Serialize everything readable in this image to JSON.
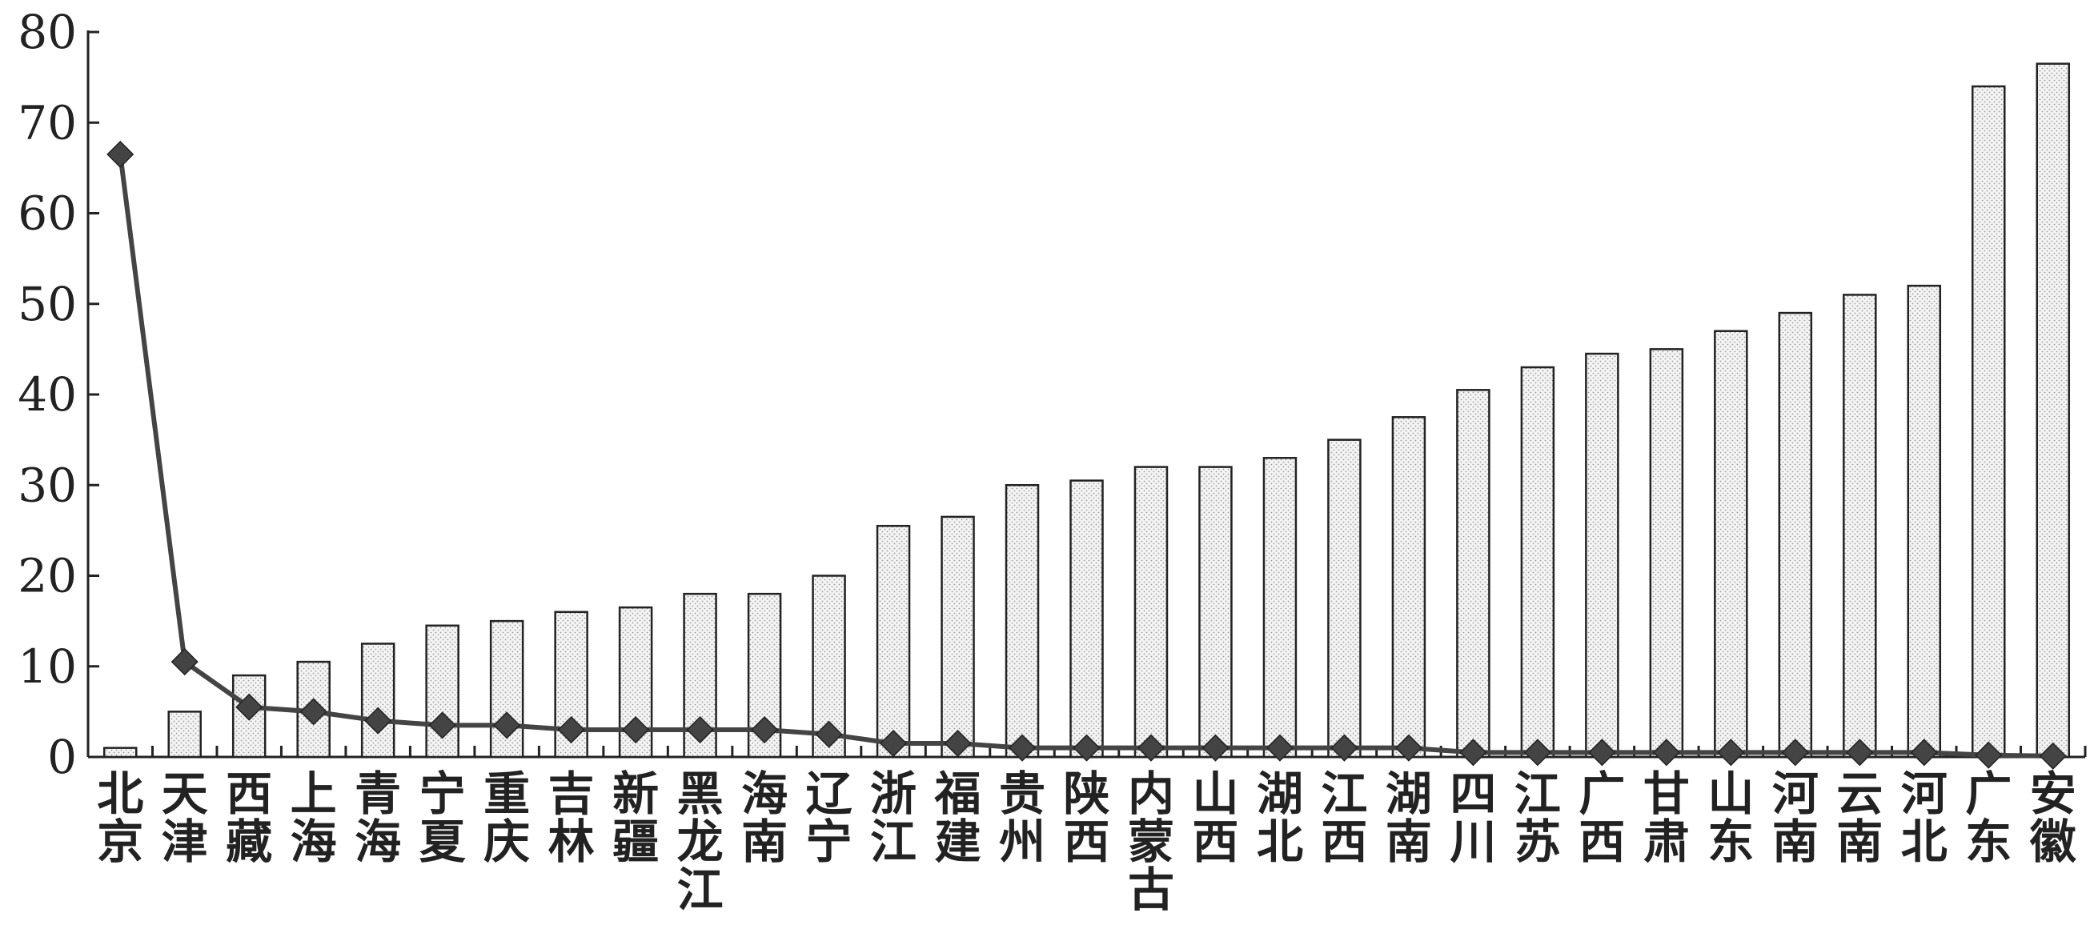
{
  "chart_data": {
    "type": "bar",
    "title": "",
    "xlabel": "",
    "ylabel": "",
    "ylim": [
      0,
      80
    ],
    "yticks": [
      0,
      10,
      20,
      30,
      40,
      50,
      60,
      70,
      80
    ],
    "grid": false,
    "categories": [
      "北京",
      "天津",
      "西藏",
      "上海",
      "青海",
      "宁夏",
      "重庆",
      "吉林",
      "新疆",
      "黑龙江",
      "海南",
      "辽宁",
      "浙江",
      "福建",
      "贵州",
      "陕西",
      "内蒙古",
      "山西",
      "湖北",
      "江西",
      "湖南",
      "四川",
      "江苏",
      "广西",
      "甘肃",
      "山东",
      "河南",
      "云南",
      "河北",
      "广东",
      "安徽"
    ],
    "series": [
      {
        "type": "bar",
        "values": [
          1,
          5,
          9,
          10.5,
          12.5,
          14.5,
          15,
          16,
          16.5,
          18,
          18,
          20,
          25.5,
          26.5,
          30,
          30.5,
          32,
          32,
          33,
          35,
          37.5,
          40.5,
          43,
          44.5,
          45,
          47,
          49,
          51,
          52,
          74,
          76.5
        ],
        "color": "#e6e6e6"
      },
      {
        "type": "line",
        "values": [
          66.5,
          10.5,
          5.5,
          5,
          4,
          3.5,
          3.5,
          3,
          3,
          3,
          3,
          2.5,
          1.5,
          1.5,
          1,
          1,
          1,
          1,
          1,
          1,
          1,
          0.5,
          0.5,
          0.5,
          0.5,
          0.5,
          0.5,
          0.5,
          0.5,
          0.2,
          0.1
        ],
        "marker": "diamond",
        "color": "#444444"
      }
    ]
  }
}
